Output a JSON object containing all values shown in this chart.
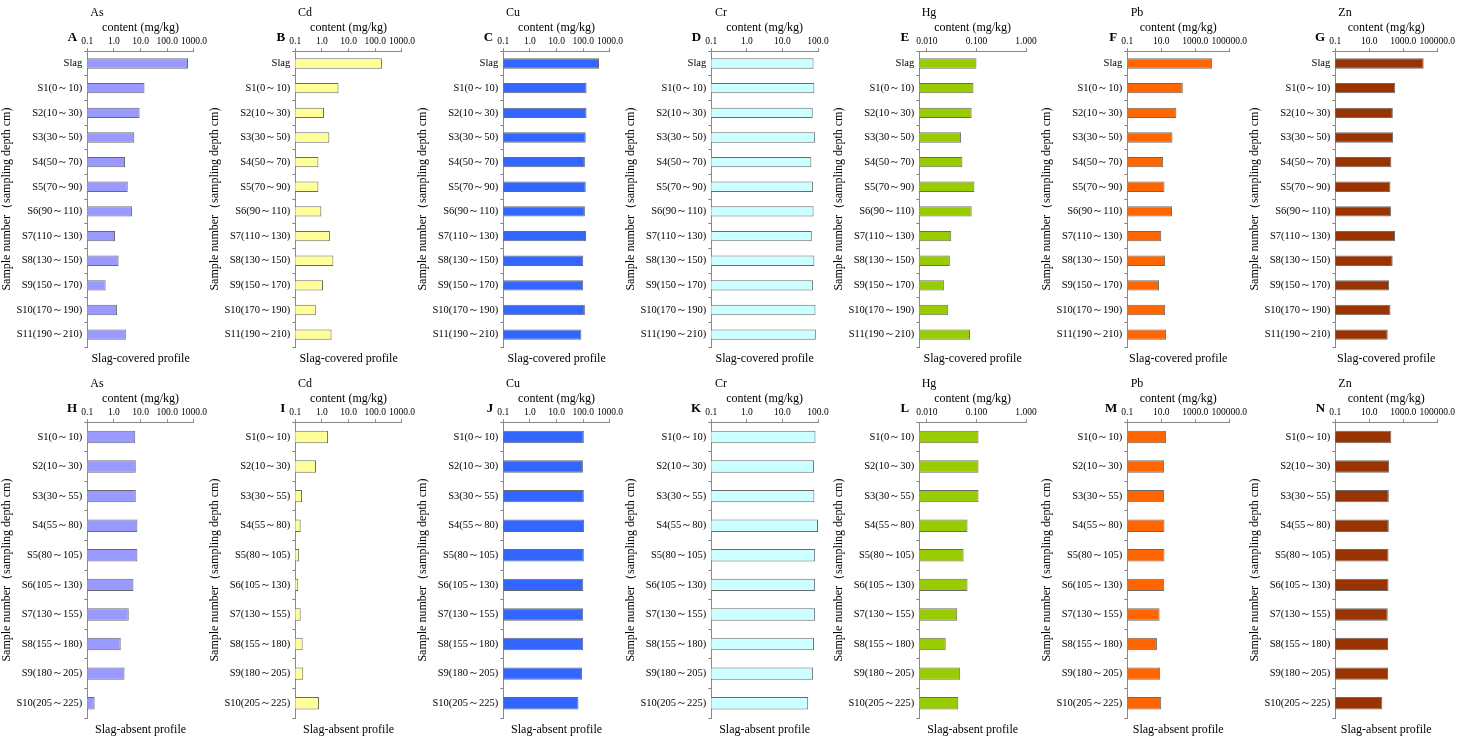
{
  "chart_data": [
    {
      "type": "bar",
      "orientation": "horizontal",
      "log": "x",
      "title": "As",
      "xlabel": "content (mg/kg)",
      "ylabel": "Sample number（sampling depth cm)",
      "annotations": [
        "A",
        "Slag-covered profile"
      ],
      "categories": [
        "Slag",
        "S1(0～10)",
        "S2(10～30)",
        "S3(30～50)",
        "S4(50～70)",
        "S5(70～90)",
        "S6(90～110)",
        "S7(110～130)",
        "S8(130～150)",
        "S9(150～170)",
        "S10(170～190)",
        "S11(190～210)"
      ],
      "values": [
        600,
        14,
        9.2,
        5.8,
        2.6,
        3.3,
        4.8,
        1.1,
        1.5,
        0.49,
        1.3,
        2.8
      ],
      "color": "#9999ff",
      "xlim": [
        0.1,
        1000
      ],
      "xticks": [
        {
          "value": 0.1,
          "label": "0.1"
        },
        {
          "value": 1,
          "label": "1.0"
        },
        {
          "value": 10,
          "label": "10.0"
        },
        {
          "value": 100,
          "label": "100.0"
        },
        {
          "value": 1000,
          "label": "1000.0"
        }
      ]
    },
    {
      "type": "bar",
      "orientation": "horizontal",
      "log": "x",
      "title": "Cd",
      "xlabel": "content (mg/kg)",
      "ylabel": "Sample number（sampling depth cm)",
      "annotations": [
        "B",
        "Slag-covered profile"
      ],
      "categories": [
        "Slag",
        "S1(0～10)",
        "S2(10～30)",
        "S3(30～50)",
        "S4(50～70)",
        "S5(70～90)",
        "S6(90～110)",
        "S7(110～130)",
        "S8(130～150)",
        "S9(150～170)",
        "S10(170～190)",
        "S11(190～210)"
      ],
      "values": [
        178,
        4.2,
        1.2,
        1.9,
        0.74,
        0.74,
        0.95,
        2.0,
        2.7,
        1.1,
        0.59,
        2.3
      ],
      "color": "#ffff99",
      "xlim": [
        0.1,
        1000
      ],
      "xticks": [
        {
          "value": 0.1,
          "label": "0.1"
        },
        {
          "value": 1,
          "label": "1.0"
        },
        {
          "value": 10,
          "label": "10.0"
        },
        {
          "value": 100,
          "label": "100.0"
        },
        {
          "value": 1000,
          "label": "1000.0"
        }
      ]
    },
    {
      "type": "bar",
      "orientation": "horizontal",
      "log": "x",
      "title": "Cu",
      "xlabel": "content (mg/kg)",
      "ylabel": "Sample number（sampling depth cm)",
      "annotations": [
        "C",
        "Slag-covered profile"
      ],
      "categories": [
        "Slag",
        "S1(0～10)",
        "S2(10～30)",
        "S3(30～50)",
        "S4(50～70)",
        "S5(70～90)",
        "S6(90～110)",
        "S7(110～130)",
        "S8(130～150)",
        "S9(150～170)",
        "S10(170～190)",
        "S11(190～210)"
      ],
      "values": [
        390,
        133,
        133,
        124,
        115,
        124,
        115,
        127,
        100,
        100,
        115,
        85
      ],
      "color": "#3366ff",
      "xlim": [
        0.1,
        1000
      ],
      "xticks": [
        {
          "value": 0.1,
          "label": "0.1"
        },
        {
          "value": 1,
          "label": "1.0"
        },
        {
          "value": 10,
          "label": "10.0"
        },
        {
          "value": 100,
          "label": "100.0"
        },
        {
          "value": 1000,
          "label": "1000.0"
        }
      ]
    },
    {
      "type": "bar",
      "orientation": "horizontal",
      "log": "x",
      "title": "Cr",
      "xlabel": "content (mg/kg)",
      "ylabel": "Sample number（sampling depth cm)",
      "annotations": [
        "D",
        "Slag-covered profile"
      ],
      "categories": [
        "Slag",
        "S1(0～10)",
        "S2(10～30)",
        "S3(30～50)",
        "S4(50～70)",
        "S5(70～90)",
        "S6(90～110)",
        "S7(110～130)",
        "S8(130～150)",
        "S9(150～170)",
        "S10(170～190)",
        "S11(190～210)"
      ],
      "values": [
        75,
        79,
        71,
        83,
        65,
        72,
        75,
        67,
        79,
        72,
        85,
        87
      ],
      "color": "#ccffff",
      "xlim": [
        0.1,
        100
      ],
      "xticks": [
        {
          "value": 0.1,
          "label": "0.1"
        },
        {
          "value": 1,
          "label": "1.0"
        },
        {
          "value": 10,
          "label": "10.0"
        },
        {
          "value": 100,
          "label": "100.0"
        }
      ]
    },
    {
      "type": "bar",
      "orientation": "horizontal",
      "log": "x",
      "title": "Hg",
      "xlabel": "content (mg/kg)",
      "ylabel": "Sample number（sampling depth cm)",
      "annotations": [
        "E",
        "Slag-covered profile"
      ],
      "categories": [
        "Slag",
        "S1(0～10)",
        "S2(10～30)",
        "S3(30～50)",
        "S4(50～70)",
        "S5(70～90)",
        "S6(90～110)",
        "S7(110～130)",
        "S8(130～150)",
        "S9(150～170)",
        "S10(170～190)",
        "S11(190～210)"
      ],
      "values": [
        0.1,
        0.087,
        0.08,
        0.049,
        0.052,
        0.091,
        0.08,
        0.031,
        0.029,
        0.022,
        0.027,
        0.074
      ],
      "color": "#99cc00",
      "xlim": [
        0.007,
        1
      ],
      "xticks": [
        {
          "value": 0.01,
          "label": "0.010"
        },
        {
          "value": 0.1,
          "label": "0.100"
        },
        {
          "value": 1,
          "label": "1.000"
        }
      ]
    },
    {
      "type": "bar",
      "orientation": "horizontal",
      "log": "x",
      "title": "Pb",
      "xlabel": "content (mg/kg)",
      "ylabel": "Sample number（sampling depth cm)",
      "annotations": [
        "F",
        "Slag-covered profile"
      ],
      "categories": [
        "Slag",
        "S1(0～10)",
        "S2(10～30)",
        "S3(30～50)",
        "S4(50～70)",
        "S5(70～90)",
        "S6(90～110)",
        "S7(110～130)",
        "S8(130～150)",
        "S9(150～170)",
        "S10(170～190)",
        "S11(190～210)"
      ],
      "values": [
        10000,
        186,
        78,
        46,
        13,
        15.5,
        43,
        10,
        17,
        7.5,
        17,
        19
      ],
      "color": "#ff6600",
      "xlim": [
        0.1,
        100000
      ],
      "xticks": [
        {
          "value": 0.1,
          "label": "0.1"
        },
        {
          "value": 10,
          "label": "10.0"
        },
        {
          "value": 1000,
          "label": "1000.0"
        },
        {
          "value": 100000,
          "label": "100000.0"
        }
      ]
    },
    {
      "type": "bar",
      "orientation": "horizontal",
      "log": "x",
      "title": "Zn",
      "xlabel": "content (mg/kg)",
      "ylabel": "Sample number（sampling depth cm)",
      "annotations": [
        "G",
        "Slag-covered profile"
      ],
      "categories": [
        "Slag",
        "S1(0～10)",
        "S2(10～30)",
        "S3(30～50)",
        "S4(50～70)",
        "S5(70～90)",
        "S6(90～110)",
        "S7(110～130)",
        "S8(130～150)",
        "S9(150～170)",
        "S10(170～190)",
        "S11(190～210)"
      ],
      "values": [
        16000,
        340,
        245,
        255,
        200,
        178,
        190,
        330,
        240,
        148,
        178,
        123
      ],
      "color": "#993300",
      "xlim": [
        0.1,
        100000
      ],
      "xticks": [
        {
          "value": 0.1,
          "label": "0.1"
        },
        {
          "value": 10,
          "label": "10.0"
        },
        {
          "value": 1000,
          "label": "1000.0"
        },
        {
          "value": 100000,
          "label": "100000.0"
        }
      ]
    },
    {
      "type": "bar",
      "orientation": "horizontal",
      "log": "x",
      "title": "As",
      "xlabel": "content (mg/kg)",
      "ylabel": "Sample number（sampling depth cm)",
      "annotations": [
        "H",
        "Slag-absent profile"
      ],
      "categories": [
        "S1(0～10)",
        "S2(10～30)",
        "S3(30～55)",
        "S4(55～80)",
        "S5(80～105)",
        "S6(105～130)",
        "S7(130～155)",
        "S8(155～180)",
        "S9(180～205)",
        "S10(205～225)"
      ],
      "values": [
        6.3,
        6.6,
        6.6,
        7.6,
        7.6,
        5.4,
        3.6,
        1.8,
        2.5,
        0.19
      ],
      "color": "#9999ff",
      "xlim": [
        0.1,
        1000
      ],
      "xticks": [
        {
          "value": 0.1,
          "label": "0.1"
        },
        {
          "value": 1,
          "label": "1.0"
        },
        {
          "value": 10,
          "label": "10.0"
        },
        {
          "value": 100,
          "label": "100.0"
        },
        {
          "value": 1000,
          "label": "1000.0"
        }
      ]
    },
    {
      "type": "bar",
      "orientation": "horizontal",
      "log": "x",
      "title": "Cd",
      "xlabel": "content (mg/kg)",
      "ylabel": "Sample number（sampling depth cm)",
      "annotations": [
        "I",
        "Slag-absent profile"
      ],
      "categories": [
        "S1(0～10)",
        "S2(10～30)",
        "S3(30～55)",
        "S4(55～80)",
        "S5(80～105)",
        "S6(105～130)",
        "S7(130～155)",
        "S8(155～180)",
        "S9(180～205)",
        "S10(205～225)"
      ],
      "values": [
        1.7,
        0.6,
        0.18,
        0.16,
        0.14,
        0.13,
        0.16,
        0.19,
        0.2,
        0.78
      ],
      "color": "#ffff99",
      "xlim": [
        0.1,
        1000
      ],
      "xticks": [
        {
          "value": 0.1,
          "label": "0.1"
        },
        {
          "value": 1,
          "label": "1.0"
        },
        {
          "value": 10,
          "label": "10.0"
        },
        {
          "value": 100,
          "label": "100.0"
        },
        {
          "value": 1000,
          "label": "1000.0"
        }
      ]
    },
    {
      "type": "bar",
      "orientation": "horizontal",
      "log": "x",
      "title": "Cu",
      "xlabel": "content (mg/kg)",
      "ylabel": "Sample number（sampling depth cm)",
      "annotations": [
        "J",
        "Slag-absent profile"
      ],
      "categories": [
        "S1(0～10)",
        "S2(10～30)",
        "S3(30～55)",
        "S4(55～80)",
        "S5(80～105)",
        "S6(105～130)",
        "S7(130～155)",
        "S8(155～180)",
        "S9(180～205)",
        "S10(205～225)"
      ],
      "values": [
        105,
        97,
        105,
        108,
        105,
        100,
        100,
        100,
        91,
        66
      ],
      "color": "#3366ff",
      "xlim": [
        0.1,
        1000
      ],
      "xticks": [
        {
          "value": 0.1,
          "label": "0.1"
        },
        {
          "value": 1,
          "label": "1.0"
        },
        {
          "value": 10,
          "label": "10.0"
        },
        {
          "value": 100,
          "label": "100.0"
        },
        {
          "value": 1000,
          "label": "1000.0"
        }
      ]
    },
    {
      "type": "bar",
      "orientation": "horizontal",
      "log": "x",
      "title": "Cr",
      "xlabel": "content (mg/kg)",
      "ylabel": "Sample number（sampling depth cm)",
      "annotations": [
        "K",
        "Slag-absent profile"
      ],
      "categories": [
        "S1(0～10)",
        "S2(10～30)",
        "S3(30～55)",
        "S4(55～80)",
        "S5(80～105)",
        "S6(105～130)",
        "S7(130～155)",
        "S8(155～180)",
        "S9(180～205)",
        "S10(205～225)"
      ],
      "values": [
        85,
        77,
        79,
        100,
        83,
        83,
        83,
        77,
        72,
        53
      ],
      "color": "#ccffff",
      "xlim": [
        0.1,
        100
      ],
      "xticks": [
        {
          "value": 0.1,
          "label": "0.1"
        },
        {
          "value": 1,
          "label": "1.0"
        },
        {
          "value": 10,
          "label": "10.0"
        },
        {
          "value": 100,
          "label": "100.0"
        }
      ]
    },
    {
      "type": "bar",
      "orientation": "horizontal",
      "log": "x",
      "title": "Hg",
      "xlabel": "content (mg/kg)",
      "ylabel": "Sample number（sampling depth cm)",
      "annotations": [
        "L",
        "Slag-absent profile"
      ],
      "categories": [
        "S1(0～10)",
        "S2(10～30)",
        "S3(30～55)",
        "S4(55～80)",
        "S5(80～105)",
        "S6(105～130)",
        "S7(130～155)",
        "S8(155～180)",
        "S9(180～205)",
        "S10(205～225)"
      ],
      "values": [
        0.11,
        0.11,
        0.11,
        0.066,
        0.055,
        0.066,
        0.041,
        0.024,
        0.047,
        0.043
      ],
      "color": "#99cc00",
      "xlim": [
        0.007,
        1
      ],
      "xticks": [
        {
          "value": 0.01,
          "label": "0.010"
        },
        {
          "value": 0.1,
          "label": "0.100"
        },
        {
          "value": 1,
          "label": "1.000"
        }
      ]
    },
    {
      "type": "bar",
      "orientation": "horizontal",
      "log": "x",
      "title": "Pb",
      "xlabel": "content (mg/kg)",
      "ylabel": "Sample number（sampling depth cm)",
      "annotations": [
        "M",
        "Slag-absent profile"
      ],
      "categories": [
        "S1(0～10)",
        "S2(10～30)",
        "S3(30～55)",
        "S4(55～80)",
        "S5(80～105)",
        "S6(105～130)",
        "S7(130～155)",
        "S8(155～180)",
        "S9(180～205)",
        "S10(205～225)"
      ],
      "values": [
        19,
        14.5,
        14.5,
        15.5,
        15.5,
        15,
        8,
        5.6,
        8.7,
        10
      ],
      "color": "#ff6600",
      "xlim": [
        0.1,
        100000
      ],
      "xticks": [
        {
          "value": 0.1,
          "label": "0.1"
        },
        {
          "value": 10,
          "label": "10.0"
        },
        {
          "value": 1000,
          "label": "1000.0"
        },
        {
          "value": 100000,
          "label": "100000.0"
        }
      ]
    },
    {
      "type": "bar",
      "orientation": "horizontal",
      "log": "x",
      "title": "Zn",
      "xlabel": "content (mg/kg)",
      "ylabel": "Sample number（sampling depth cm)",
      "annotations": [
        "N",
        "Slag-absent profile"
      ],
      "categories": [
        "S1(0～10)",
        "S2(10～30)",
        "S3(30～55)",
        "S4(55～80)",
        "S5(80～105)",
        "S6(105～130)",
        "S7(130～155)",
        "S8(155～180)",
        "S9(180～205)",
        "S10(205～225)"
      ],
      "values": [
        200,
        148,
        142,
        142,
        137,
        137,
        123,
        128,
        128,
        59
      ],
      "color": "#993300",
      "xlim": [
        0.1,
        100000
      ],
      "xticks": [
        {
          "value": 0.1,
          "label": "0.1"
        },
        {
          "value": 10,
          "label": "10.0"
        },
        {
          "value": 1000,
          "label": "1000.0"
        },
        {
          "value": 100000,
          "label": "100000.0"
        }
      ]
    }
  ]
}
